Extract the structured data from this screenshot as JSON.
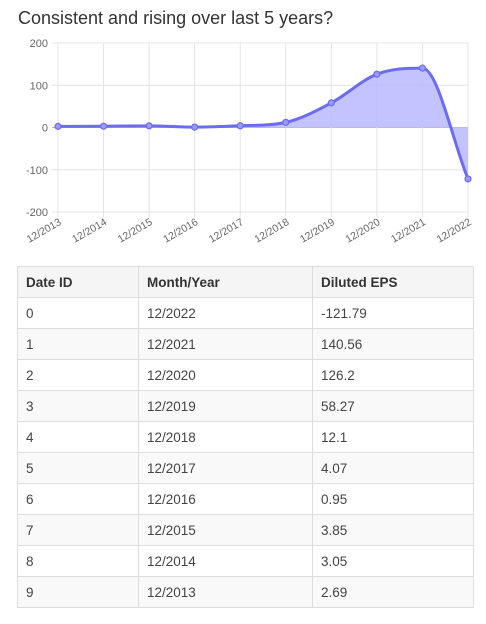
{
  "title": "Consistent and rising over last 5 years?",
  "chart_data": {
    "type": "area",
    "title": "Consistent and rising over last 5 years?",
    "categories": [
      "12/2013",
      "12/2014",
      "12/2015",
      "12/2016",
      "12/2017",
      "12/2018",
      "12/2019",
      "12/2020",
      "12/2021",
      "12/2022"
    ],
    "series": [
      {
        "values": [
          2.69,
          3.05,
          3.85,
          0.95,
          4.07,
          12.1,
          58.27,
          126.2,
          140.56,
          -121.79
        ]
      }
    ],
    "ylim": [
      -200,
      200
    ],
    "yticks": [
      200,
      100,
      0,
      -100,
      -200
    ],
    "grid": true,
    "line_color": "#6c6cf0",
    "fill_color": "#b8b8ff"
  },
  "table": {
    "headers": [
      "Date ID",
      "Month/Year",
      "Diluted EPS"
    ],
    "rows": [
      [
        "0",
        "12/2022",
        "-121.79"
      ],
      [
        "1",
        "12/2021",
        "140.56"
      ],
      [
        "2",
        "12/2020",
        "126.2"
      ],
      [
        "3",
        "12/2019",
        "58.27"
      ],
      [
        "4",
        "12/2018",
        "12.1"
      ],
      [
        "5",
        "12/2017",
        "4.07"
      ],
      [
        "6",
        "12/2016",
        "0.95"
      ],
      [
        "7",
        "12/2015",
        "3.85"
      ],
      [
        "8",
        "12/2014",
        "3.05"
      ],
      [
        "9",
        "12/2013",
        "2.69"
      ]
    ]
  }
}
